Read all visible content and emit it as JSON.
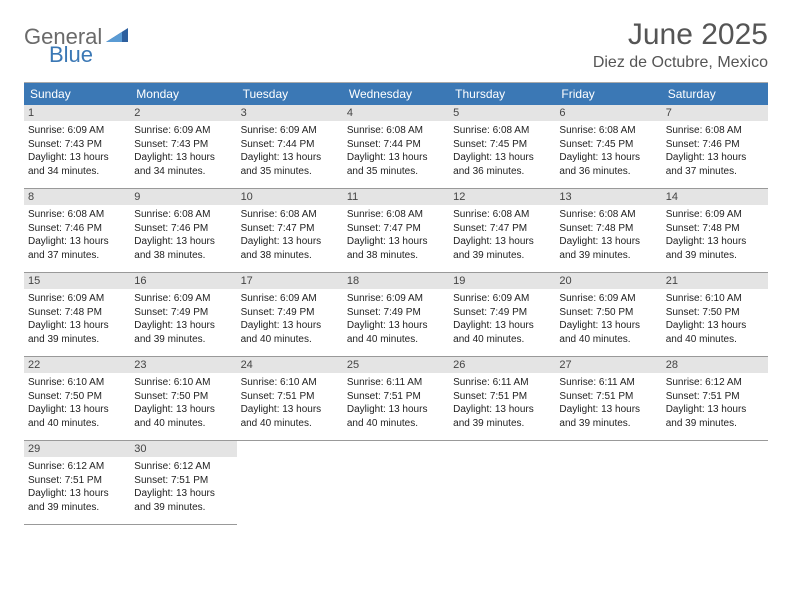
{
  "logo": {
    "text1": "General",
    "text2": "Blue"
  },
  "title": "June 2025",
  "location": "Diez de Octubre, Mexico",
  "colors": {
    "header_bg": "#3b78b5",
    "header_text": "#ffffff",
    "daynum_bg": "#e4e4e4",
    "body_text": "#222222",
    "logo_gray": "#6a6a6a",
    "logo_blue": "#3b78b5",
    "title_color": "#555555"
  },
  "weekdays": [
    "Sunday",
    "Monday",
    "Tuesday",
    "Wednesday",
    "Thursday",
    "Friday",
    "Saturday"
  ],
  "days": [
    {
      "n": "1",
      "sr": "Sunrise: 6:09 AM",
      "ss": "Sunset: 7:43 PM",
      "d1": "Daylight: 13 hours",
      "d2": "and 34 minutes."
    },
    {
      "n": "2",
      "sr": "Sunrise: 6:09 AM",
      "ss": "Sunset: 7:43 PM",
      "d1": "Daylight: 13 hours",
      "d2": "and 34 minutes."
    },
    {
      "n": "3",
      "sr": "Sunrise: 6:09 AM",
      "ss": "Sunset: 7:44 PM",
      "d1": "Daylight: 13 hours",
      "d2": "and 35 minutes."
    },
    {
      "n": "4",
      "sr": "Sunrise: 6:08 AM",
      "ss": "Sunset: 7:44 PM",
      "d1": "Daylight: 13 hours",
      "d2": "and 35 minutes."
    },
    {
      "n": "5",
      "sr": "Sunrise: 6:08 AM",
      "ss": "Sunset: 7:45 PM",
      "d1": "Daylight: 13 hours",
      "d2": "and 36 minutes."
    },
    {
      "n": "6",
      "sr": "Sunrise: 6:08 AM",
      "ss": "Sunset: 7:45 PM",
      "d1": "Daylight: 13 hours",
      "d2": "and 36 minutes."
    },
    {
      "n": "7",
      "sr": "Sunrise: 6:08 AM",
      "ss": "Sunset: 7:46 PM",
      "d1": "Daylight: 13 hours",
      "d2": "and 37 minutes."
    },
    {
      "n": "8",
      "sr": "Sunrise: 6:08 AM",
      "ss": "Sunset: 7:46 PM",
      "d1": "Daylight: 13 hours",
      "d2": "and 37 minutes."
    },
    {
      "n": "9",
      "sr": "Sunrise: 6:08 AM",
      "ss": "Sunset: 7:46 PM",
      "d1": "Daylight: 13 hours",
      "d2": "and 38 minutes."
    },
    {
      "n": "10",
      "sr": "Sunrise: 6:08 AM",
      "ss": "Sunset: 7:47 PM",
      "d1": "Daylight: 13 hours",
      "d2": "and 38 minutes."
    },
    {
      "n": "11",
      "sr": "Sunrise: 6:08 AM",
      "ss": "Sunset: 7:47 PM",
      "d1": "Daylight: 13 hours",
      "d2": "and 38 minutes."
    },
    {
      "n": "12",
      "sr": "Sunrise: 6:08 AM",
      "ss": "Sunset: 7:47 PM",
      "d1": "Daylight: 13 hours",
      "d2": "and 39 minutes."
    },
    {
      "n": "13",
      "sr": "Sunrise: 6:08 AM",
      "ss": "Sunset: 7:48 PM",
      "d1": "Daylight: 13 hours",
      "d2": "and 39 minutes."
    },
    {
      "n": "14",
      "sr": "Sunrise: 6:09 AM",
      "ss": "Sunset: 7:48 PM",
      "d1": "Daylight: 13 hours",
      "d2": "and 39 minutes."
    },
    {
      "n": "15",
      "sr": "Sunrise: 6:09 AM",
      "ss": "Sunset: 7:48 PM",
      "d1": "Daylight: 13 hours",
      "d2": "and 39 minutes."
    },
    {
      "n": "16",
      "sr": "Sunrise: 6:09 AM",
      "ss": "Sunset: 7:49 PM",
      "d1": "Daylight: 13 hours",
      "d2": "and 39 minutes."
    },
    {
      "n": "17",
      "sr": "Sunrise: 6:09 AM",
      "ss": "Sunset: 7:49 PM",
      "d1": "Daylight: 13 hours",
      "d2": "and 40 minutes."
    },
    {
      "n": "18",
      "sr": "Sunrise: 6:09 AM",
      "ss": "Sunset: 7:49 PM",
      "d1": "Daylight: 13 hours",
      "d2": "and 40 minutes."
    },
    {
      "n": "19",
      "sr": "Sunrise: 6:09 AM",
      "ss": "Sunset: 7:49 PM",
      "d1": "Daylight: 13 hours",
      "d2": "and 40 minutes."
    },
    {
      "n": "20",
      "sr": "Sunrise: 6:09 AM",
      "ss": "Sunset: 7:50 PM",
      "d1": "Daylight: 13 hours",
      "d2": "and 40 minutes."
    },
    {
      "n": "21",
      "sr": "Sunrise: 6:10 AM",
      "ss": "Sunset: 7:50 PM",
      "d1": "Daylight: 13 hours",
      "d2": "and 40 minutes."
    },
    {
      "n": "22",
      "sr": "Sunrise: 6:10 AM",
      "ss": "Sunset: 7:50 PM",
      "d1": "Daylight: 13 hours",
      "d2": "and 40 minutes."
    },
    {
      "n": "23",
      "sr": "Sunrise: 6:10 AM",
      "ss": "Sunset: 7:50 PM",
      "d1": "Daylight: 13 hours",
      "d2": "and 40 minutes."
    },
    {
      "n": "24",
      "sr": "Sunrise: 6:10 AM",
      "ss": "Sunset: 7:51 PM",
      "d1": "Daylight: 13 hours",
      "d2": "and 40 minutes."
    },
    {
      "n": "25",
      "sr": "Sunrise: 6:11 AM",
      "ss": "Sunset: 7:51 PM",
      "d1": "Daylight: 13 hours",
      "d2": "and 40 minutes."
    },
    {
      "n": "26",
      "sr": "Sunrise: 6:11 AM",
      "ss": "Sunset: 7:51 PM",
      "d1": "Daylight: 13 hours",
      "d2": "and 39 minutes."
    },
    {
      "n": "27",
      "sr": "Sunrise: 6:11 AM",
      "ss": "Sunset: 7:51 PM",
      "d1": "Daylight: 13 hours",
      "d2": "and 39 minutes."
    },
    {
      "n": "28",
      "sr": "Sunrise: 6:12 AM",
      "ss": "Sunset: 7:51 PM",
      "d1": "Daylight: 13 hours",
      "d2": "and 39 minutes."
    },
    {
      "n": "29",
      "sr": "Sunrise: 6:12 AM",
      "ss": "Sunset: 7:51 PM",
      "d1": "Daylight: 13 hours",
      "d2": "and 39 minutes."
    },
    {
      "n": "30",
      "sr": "Sunrise: 6:12 AM",
      "ss": "Sunset: 7:51 PM",
      "d1": "Daylight: 13 hours",
      "d2": "and 39 minutes."
    }
  ]
}
